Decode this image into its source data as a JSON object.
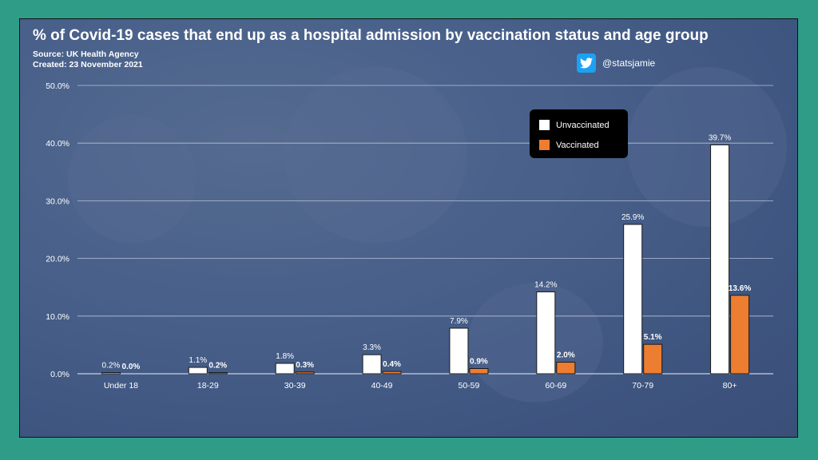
{
  "header": {
    "title": "% of Covid-19 cases that end up as a hospital admission by vaccination status and age group",
    "source": "Source: UK Health Agency",
    "created": "Created: 23 November 2021"
  },
  "twitter": {
    "handle": "@statsjamie",
    "icon": "twitter-bird-icon"
  },
  "colors": {
    "unvaccinated": "#ffffff",
    "vaccinated": "#ed7d31"
  },
  "chart_data": {
    "type": "bar",
    "title": "% of Covid-19 cases that end up as a hospital admission by vaccination status and age group",
    "xlabel": "",
    "ylabel": "",
    "categories": [
      "Under 18",
      "18-29",
      "30-39",
      "40-49",
      "50-59",
      "60-69",
      "70-79",
      "80+"
    ],
    "series": [
      {
        "name": "Unvaccinated",
        "values": [
          0.2,
          1.1,
          1.8,
          3.3,
          7.9,
          14.2,
          25.9,
          39.7
        ],
        "labels": [
          "0.2%",
          "1.1%",
          "1.8%",
          "3.3%",
          "7.9%",
          "14.2%",
          "25.9%",
          "39.7%"
        ]
      },
      {
        "name": "Vaccinated",
        "values": [
          0.0,
          0.2,
          0.3,
          0.4,
          0.9,
          2.0,
          5.1,
          13.6
        ],
        "labels": [
          "0.0%",
          "0.2%",
          "0.3%",
          "0.4%",
          "0.9%",
          "2.0%",
          "5.1%",
          "13.6%"
        ]
      }
    ],
    "ylim": [
      0,
      50
    ],
    "yticks": [
      0,
      10,
      20,
      30,
      40,
      50
    ],
    "ytick_labels": [
      "0.0%",
      "10.0%",
      "20.0%",
      "30.0%",
      "40.0%",
      "50.0%"
    ],
    "grid": true,
    "legend_position": "top-right"
  }
}
